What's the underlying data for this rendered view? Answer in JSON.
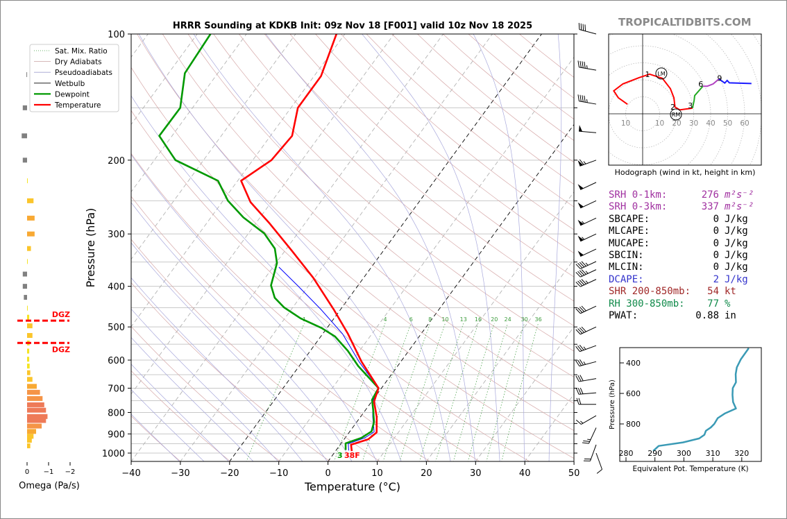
{
  "title": "HRRR Sounding at KDKB Init: 09z Nov 18 [F001] valid 10z Nov 18 2025",
  "watermark": "TROPICALTIDBITS.COM",
  "legend": [
    {
      "label": "Sat. Mix. Ratio",
      "color": "#3a9a3a",
      "style": "dotted"
    },
    {
      "label": "Dry Adiabats",
      "color": "#c9a0a0",
      "style": "solid"
    },
    {
      "label": "Pseudoadiabats",
      "color": "#9f9fd0",
      "style": "solid"
    },
    {
      "label": "Wetbulb",
      "color": "#000000",
      "style": "solid"
    },
    {
      "label": "Dewpoint",
      "color": "#009900",
      "style": "solid"
    },
    {
      "label": "Temperature",
      "color": "#ff0000",
      "style": "solid"
    }
  ],
  "chart_data": [
    {
      "type": "line",
      "name": "skew-t",
      "xlabel": "Temperature (°C)",
      "ylabel": "Pressure (hPa)",
      "xlim": [
        -40,
        50
      ],
      "ylim": [
        1050,
        100
      ],
      "yscale": "log",
      "x_ticks": [
        "−40",
        "−30",
        "−20",
        "−10",
        "0",
        "10",
        "20",
        "30",
        "40",
        "50"
      ],
      "x_tick_values": [
        -40,
        -30,
        -20,
        -10,
        0,
        10,
        20,
        30,
        40,
        50
      ],
      "y_ticks": [
        "100",
        "200",
        "300",
        "400",
        "500",
        "600",
        "700",
        "800",
        "900",
        "1000"
      ],
      "y_tick_values": [
        100,
        200,
        300,
        400,
        500,
        600,
        700,
        800,
        900,
        1000
      ],
      "isobars": [
        100,
        150,
        200,
        250,
        300,
        350,
        400,
        450,
        500,
        550,
        600,
        650,
        700,
        750,
        800,
        850,
        900,
        950,
        1000
      ],
      "highlight_isotherms": [
        0,
        -20
      ],
      "mixing_ratio_labels": [
        "1",
        "4",
        "6",
        "8",
        "10",
        "13",
        "16",
        "20",
        "24",
        "30",
        "36"
      ],
      "mixing_ratio_values": [
        1,
        4,
        6,
        8,
        10,
        13,
        16,
        20,
        24,
        30,
        36
      ],
      "temperature": {
        "pressure": [
          989,
          955,
          927,
          893,
          820,
          754,
          700,
          605,
          519,
          454,
          382,
          329,
          283,
          252,
          224,
          200,
          175,
          150,
          126,
          100
        ],
        "values": [
          3.3,
          2.2,
          4.9,
          5.6,
          3.3,
          0.5,
          -0.6,
          -8,
          -14.9,
          -21.4,
          -30.2,
          -38.6,
          -47.2,
          -54.2,
          -59.3,
          -56.2,
          -55.6,
          -58.6,
          -58.6,
          -61.7
        ]
      },
      "dewpoint": {
        "pressure": [
          983,
          948,
          920,
          888,
          843,
          790,
          746,
          700,
          620,
          570,
          527,
          503,
          477,
          449,
          426,
          398,
          352,
          325,
          299,
          274,
          250,
          224,
          200,
          175,
          150,
          124,
          100
        ],
        "values": [
          1.9,
          0.9,
          3.3,
          4.4,
          3.5,
          1.6,
          -0.2,
          -0.6,
          -8,
          -12.4,
          -17.1,
          -21.1,
          -26.8,
          -31.8,
          -35.1,
          -37.7,
          -39.8,
          -42.4,
          -46.8,
          -53.4,
          -59,
          -64,
          -75.7,
          -82.6,
          -82.5,
          -86.7,
          -87.3
        ]
      },
      "wetbulb": {
        "pressure": [
          986,
          950,
          920,
          890,
          820,
          754,
          700,
          605,
          519,
          454,
          400,
          360
        ],
        "values": [
          2.6,
          1.5,
          4.0,
          5.0,
          2.5,
          0.2,
          -0.6,
          -8.5,
          -16,
          -24,
          -32,
          -38.8
        ]
      },
      "surface_labels": {
        "dewpoint": "3",
        "temperature": "38F"
      },
      "wind_barbs": [
        {
          "p": 100,
          "dir": 285,
          "spd": 40
        },
        {
          "p": 122,
          "dir": 280,
          "spd": 45
        },
        {
          "p": 147,
          "dir": 280,
          "spd": 45
        },
        {
          "p": 172,
          "dir": 275,
          "spd": 50
        },
        {
          "p": 200,
          "dir": 250,
          "spd": 65
        },
        {
          "p": 226,
          "dir": 245,
          "spd": 50
        },
        {
          "p": 250,
          "dir": 245,
          "spd": 50
        },
        {
          "p": 275,
          "dir": 245,
          "spd": 55
        },
        {
          "p": 300,
          "dir": 245,
          "spd": 55
        },
        {
          "p": 326,
          "dir": 245,
          "spd": 50
        },
        {
          "p": 349,
          "dir": 245,
          "spd": 45
        },
        {
          "p": 365,
          "dir": 245,
          "spd": 45
        },
        {
          "p": 385,
          "dir": 245,
          "spd": 45
        },
        {
          "p": 446,
          "dir": 245,
          "spd": 40
        },
        {
          "p": 500,
          "dir": 245,
          "spd": 40
        },
        {
          "p": 554,
          "dir": 250,
          "spd": 35
        },
        {
          "p": 605,
          "dir": 255,
          "spd": 35
        },
        {
          "p": 664,
          "dir": 260,
          "spd": 30
        },
        {
          "p": 718,
          "dir": 265,
          "spd": 30
        },
        {
          "p": 765,
          "dir": 270,
          "spd": 20
        },
        {
          "p": 814,
          "dir": 240,
          "spd": 15
        },
        {
          "p": 870,
          "dir": 205,
          "spd": 25
        },
        {
          "p": 955,
          "dir": 200,
          "spd": 20
        },
        {
          "p": 1000,
          "dir": 160,
          "spd": 10
        }
      ]
    },
    {
      "type": "bar",
      "name": "omega",
      "xlabel": "Omega (Pa/s)",
      "x_ticks": [
        "0",
        "−1",
        "−2"
      ],
      "x_tick_values": [
        0,
        -1,
        -2
      ],
      "dgz_label": "DGZ",
      "dgz_pressures": [
        483,
        546
      ],
      "pressure": [
        125,
        150,
        175,
        200,
        224,
        250,
        275,
        300,
        325,
        349,
        374,
        400,
        425,
        451,
        474,
        497,
        524,
        546,
        571,
        597,
        620,
        643,
        667,
        693,
        716,
        741,
        767,
        790,
        818,
        836,
        862,
        888,
        912,
        932,
        961
      ],
      "values": [
        0.03,
        0.2,
        0.25,
        0.2,
        -0.02,
        -0.3,
        -0.35,
        -0.35,
        -0.18,
        -0.02,
        0.2,
        0.2,
        0.15,
        -0.03,
        -0.1,
        -0.25,
        -0.25,
        -0.12,
        -0.1,
        -0.1,
        -0.12,
        -0.15,
        -0.25,
        -0.45,
        -0.6,
        -0.72,
        -0.8,
        -0.88,
        -0.95,
        -0.88,
        -0.68,
        -0.42,
        -0.3,
        -0.22,
        -0.15
      ]
    },
    {
      "type": "line",
      "name": "hodograph",
      "caption": "Hodograph (wind in kt, height in km)",
      "ring_labels": [
        "10",
        "10",
        "20",
        "30",
        "40",
        "50",
        "60"
      ],
      "ring_label_values": [
        -10,
        10,
        20,
        30,
        40,
        50,
        60
      ],
      "segments": [
        {
          "color": "#ff0000",
          "u": [
            -8.9,
            -14.3,
            -17,
            -11.6,
            -2,
            4.1,
            11.6,
            16.3,
            18.4,
            19,
            21.8,
            29.3
          ],
          "v": [
            5.6,
            9.4,
            13.5,
            17.6,
            21.3,
            23.3,
            20.9,
            14.8,
            9.4,
            4,
            2.3,
            3.3
          ]
        },
        {
          "color": "#22aa22",
          "u": [
            29.3,
            30.3,
            30.6,
            35.4
          ],
          "v": [
            3.3,
            8,
            10.7,
            16.2
          ]
        },
        {
          "color": "#b040c0",
          "u": [
            35.4,
            38,
            41.5,
            44.9
          ],
          "v": [
            16.2,
            16.2,
            17.6,
            20.5
          ]
        },
        {
          "color": "#1a1aff",
          "u": [
            44.9,
            48.3,
            49.7,
            51,
            64
          ],
          "v": [
            20.5,
            18.1,
            19.6,
            18.2,
            17.8
          ]
        }
      ],
      "height_labels": [
        {
          "text": "1",
          "u": 4.1,
          "v": 23.3
        },
        {
          "text": "2",
          "u": 19,
          "v": 4
        },
        {
          "text": "3",
          "u": 29.3,
          "v": 4.8
        },
        {
          "text": "6",
          "u": 35.4,
          "v": 17.5
        },
        {
          "text": "9",
          "u": 46.5,
          "v": 21
        }
      ],
      "storm_motion": [
        {
          "label": "LM",
          "u": 11,
          "v": 23.7
        },
        {
          "label": "RM",
          "u": 19.6,
          "v": -0.4
        }
      ]
    },
    {
      "type": "line",
      "name": "theta-e",
      "xlabel": "Equivalent Pot. Temperature (K)",
      "ylabel": "Pressure (hPa)",
      "x_ticks": [
        "280",
        "290",
        "300",
        "310",
        "320"
      ],
      "x_tick_values": [
        280,
        290,
        300,
        310,
        320
      ],
      "y_ticks": [
        "400",
        "600",
        "800"
      ],
      "y_tick_values": [
        400,
        600,
        800
      ],
      "color": "#3a9ab5",
      "theta_e": [
        322.4,
        319.7,
        318.3,
        317.9,
        318,
        316.9,
        316.8,
        317,
        318,
        314.1,
        311.7,
        310.5,
        309.3,
        307.6,
        307.1,
        305.3,
        299.7,
        291.3,
        289.4
      ],
      "pressure": [
        304,
        376,
        429,
        474,
        527,
        565,
        610,
        656,
        699,
        732,
        762,
        800,
        823,
        845,
        871,
        895,
        921,
        944,
        977
      ]
    }
  ],
  "params": [
    {
      "label": "SRH 0-1km:",
      "value": "276",
      "unit": "m²s⁻²",
      "color": "#a030a0"
    },
    {
      "label": "SRH 0-3km:",
      "value": "337",
      "unit": "m²s⁻²",
      "color": "#a030a0"
    },
    {
      "label": "SBCAPE:",
      "value": "0",
      "unit": "J/kg",
      "color": "#000000"
    },
    {
      "label": "MLCAPE:",
      "value": "0",
      "unit": "J/kg",
      "color": "#000000"
    },
    {
      "label": "MUCAPE:",
      "value": "0",
      "unit": "J/kg",
      "color": "#000000"
    },
    {
      "label": "SBCIN:",
      "value": "0",
      "unit": "J/kg",
      "color": "#000000"
    },
    {
      "label": "MLCIN:",
      "value": "0",
      "unit": "J/kg",
      "color": "#000000"
    },
    {
      "label": "DCAPE:",
      "value": "2",
      "unit": "J/kg",
      "color": "#3333cc"
    },
    {
      "label": "SHR 200-850mb:",
      "value": "54",
      "unit": "kt",
      "color": "#a02828"
    },
    {
      "label": "RH 300-850mb:",
      "value": "77",
      "unit": "%",
      "color": "#108a4a"
    },
    {
      "label": "PWAT:",
      "value": "0.88",
      "unit": "in",
      "color": "#000000"
    }
  ]
}
